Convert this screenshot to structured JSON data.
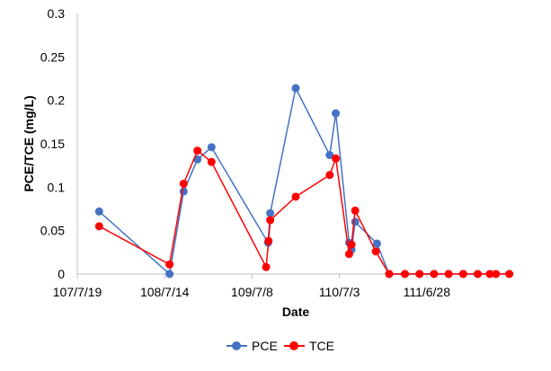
{
  "chart_data": {
    "type": "line",
    "xlabel": "Date",
    "ylabel": "PCE/TCE (mg/L)",
    "x_tick_labels": [
      "107/7/19",
      "108/7/14",
      "109/7/8",
      "110/7/3",
      "111/6/28"
    ],
    "x_tick_days": [
      0,
      360,
      720,
      1080,
      1440
    ],
    "ylim": [
      0,
      0.3
    ],
    "y_ticks": [
      0,
      0.05,
      0.1,
      0.15,
      0.2,
      0.25,
      0.3
    ],
    "y_tick_labels": [
      "0",
      "0.05",
      "0.1",
      "0.15",
      "0.2",
      "0.25",
      "0.3"
    ],
    "legend_position": "bottom",
    "grid": false,
    "series": [
      {
        "name": "PCE",
        "color": "#4472C4",
        "points": [
          [
            90,
            0.072
          ],
          [
            380,
            0.0
          ],
          [
            438,
            0.095
          ],
          [
            495,
            0.132
          ],
          [
            553,
            0.146
          ],
          [
            786,
            0.036
          ],
          [
            795,
            0.07
          ],
          [
            900,
            0.214
          ],
          [
            1040,
            0.137
          ],
          [
            1065,
            0.185
          ],
          [
            1120,
            0.036
          ],
          [
            1130,
            0.028
          ],
          [
            1145,
            0.06
          ],
          [
            1235,
            0.035
          ],
          [
            1285,
            0.0
          ],
          [
            1350,
            0.0
          ],
          [
            1410,
            0.0
          ],
          [
            1470,
            0.0
          ],
          [
            1530,
            0.0
          ],
          [
            1590,
            0.0
          ],
          [
            1650,
            0.0
          ],
          [
            1700,
            0.0
          ],
          [
            1725,
            0.0
          ],
          [
            1780,
            0.0
          ]
        ]
      },
      {
        "name": "TCE",
        "color": "#FF0000",
        "points": [
          [
            90,
            0.055
          ],
          [
            380,
            0.011
          ],
          [
            438,
            0.104
          ],
          [
            495,
            0.142
          ],
          [
            553,
            0.129
          ],
          [
            778,
            0.008
          ],
          [
            788,
            0.038
          ],
          [
            795,
            0.062
          ],
          [
            900,
            0.089
          ],
          [
            1040,
            0.114
          ],
          [
            1065,
            0.133
          ],
          [
            1120,
            0.023
          ],
          [
            1130,
            0.034
          ],
          [
            1145,
            0.073
          ],
          [
            1230,
            0.026
          ],
          [
            1285,
            0.0
          ],
          [
            1350,
            0.0
          ],
          [
            1410,
            0.0
          ],
          [
            1470,
            0.0
          ],
          [
            1530,
            0.0
          ],
          [
            1590,
            0.0
          ],
          [
            1650,
            0.0
          ],
          [
            1700,
            0.0
          ],
          [
            1725,
            0.0
          ],
          [
            1780,
            0.0
          ]
        ]
      }
    ]
  }
}
